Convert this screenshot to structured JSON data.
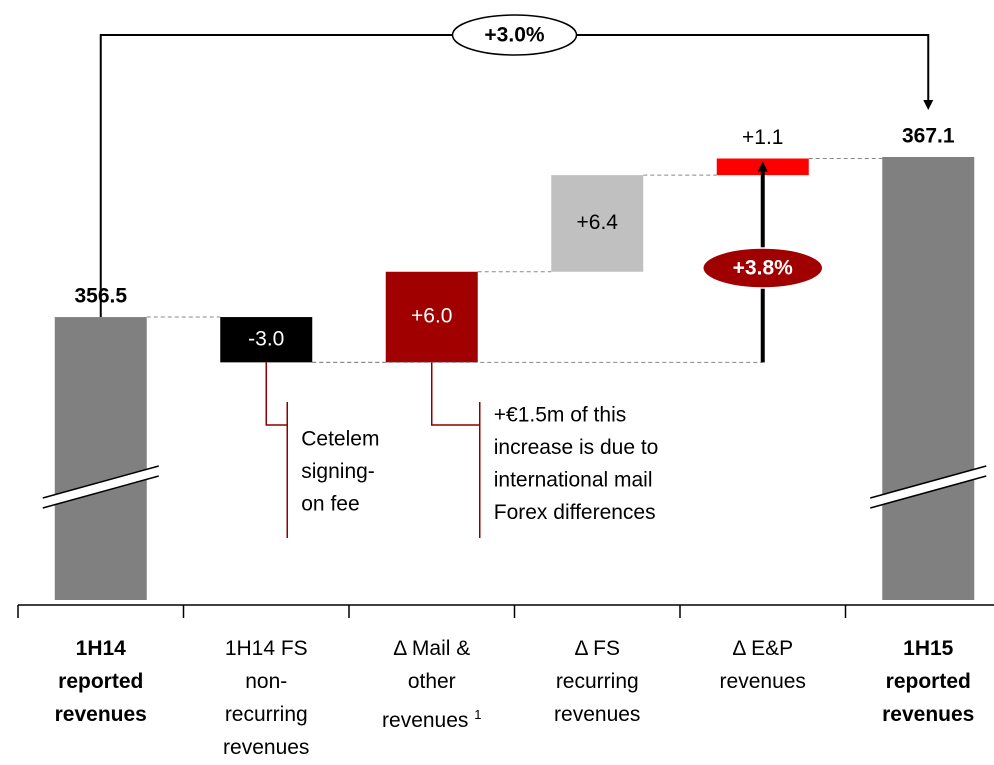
{
  "chart_data": {
    "type": "waterfall",
    "categories": [
      "1H14 reported revenues",
      "1H14 FS non-recurring revenues",
      "Δ Mail & other revenues",
      "Δ FS recurring revenues",
      "Δ E&P revenues",
      "1H15 reported revenues"
    ],
    "footnotes": [
      {
        "category": "Δ Mail & other revenues",
        "mark": "1"
      }
    ],
    "values": [
      356.5,
      -3.0,
      6.0,
      6.4,
      1.1,
      367.1
    ],
    "value_labels": [
      "356.5",
      "-3.0",
      "+6.0",
      "+6.4",
      "+1.1",
      "367.1"
    ],
    "totals": [
      true,
      false,
      false,
      false,
      false,
      true
    ],
    "colors": [
      "#808080",
      "#000000",
      "#a00000",
      "#c0c0c0",
      "#ff0000",
      "#808080"
    ],
    "total_change_label": "+3.0%",
    "recurring_change_label": "+3.8%",
    "notes": [
      {
        "category": "1H14 FS non-recurring revenues",
        "lines": [
          "Cetelem",
          "signing-",
          "on fee"
        ]
      },
      {
        "category": "Δ Mail & other revenues",
        "lines": [
          "+€1.5m of this",
          "increase is due to",
          "international mail",
          "Forex differences"
        ]
      }
    ]
  }
}
